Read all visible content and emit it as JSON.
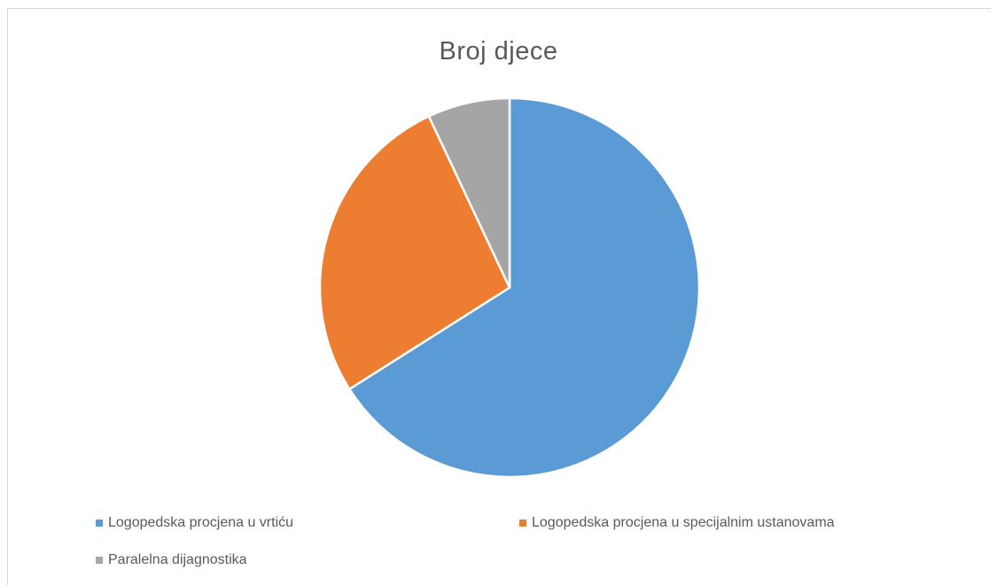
{
  "chart_data": {
    "type": "pie",
    "title": "Broj djece",
    "categories": [
      "Logopedska procjena u vrtiću",
      "Logopedska procjena u specijalnim ustanovama",
      "Paralelna dijagnostika"
    ],
    "values": [
      66,
      27,
      7
    ],
    "colors": [
      "#5b9bd5",
      "#ed7d31",
      "#a5a5a5"
    ],
    "legend_position": "bottom"
  }
}
